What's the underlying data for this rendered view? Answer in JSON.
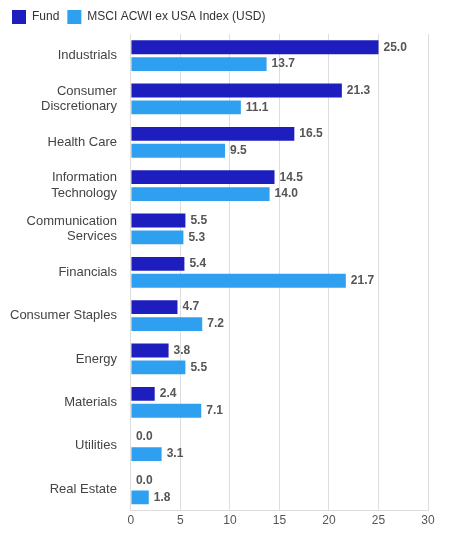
{
  "chart_data": {
    "type": "bar",
    "orientation": "horizontal",
    "categories": [
      "Industrials",
      "Consumer Discretionary",
      "Health Care",
      "Information Technology",
      "Communication Services",
      "Financials",
      "Consumer Staples",
      "Energy",
      "Materials",
      "Utilities",
      "Real Estate"
    ],
    "series": [
      {
        "name": "Fund",
        "color": "#1e1ebf",
        "values": [
          25.0,
          21.3,
          16.5,
          14.5,
          5.5,
          5.4,
          4.7,
          3.8,
          2.4,
          0.0,
          0.0
        ],
        "value_labels": [
          "25.0",
          "21.3",
          "16.5",
          "14.5",
          "5.5",
          "5.4",
          "4.7",
          "3.8",
          "2.4",
          "0.0",
          "0.0"
        ]
      },
      {
        "name": "MSCI ACWI ex USA Index (USD)",
        "color": "#2f9ff0",
        "values": [
          13.7,
          11.1,
          9.5,
          14.0,
          5.3,
          21.7,
          7.2,
          5.5,
          7.1,
          3.1,
          1.8
        ],
        "value_labels": [
          "13.7",
          "11.1",
          "9.5",
          "14.0",
          "5.3",
          "21.7",
          "7.2",
          "5.5",
          "7.1",
          "3.1",
          "1.8"
        ]
      }
    ],
    "xlim": [
      0,
      30
    ],
    "xticks": [
      0,
      5,
      10,
      15,
      20,
      25,
      30
    ],
    "grid": true,
    "legend": "top-left",
    "data_labels": true
  }
}
